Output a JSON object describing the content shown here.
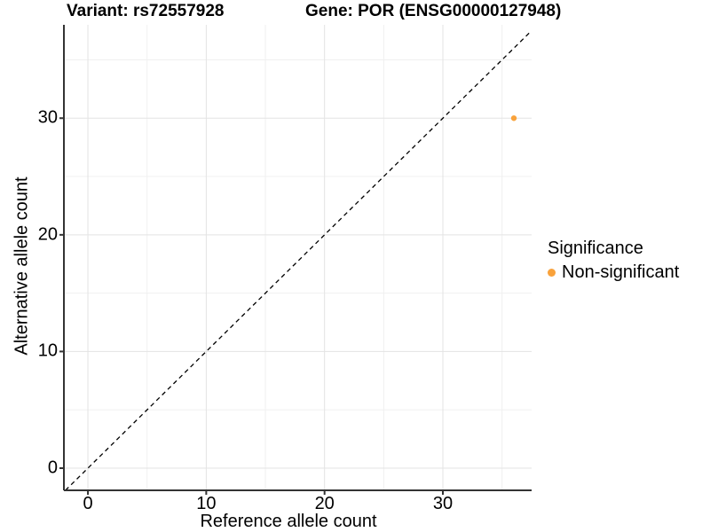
{
  "figure": {
    "title_left": "Variant: rs72557928",
    "title_right": "Gene: POR (ENSG00000127948)"
  },
  "chart_data": {
    "type": "scatter",
    "xlabel": "Reference allele count",
    "ylabel": "Alternative allele count",
    "x_ticks": [
      0,
      10,
      20,
      30
    ],
    "y_ticks": [
      0,
      10,
      20,
      30
    ],
    "x_minor_ticks": [
      5,
      15,
      25,
      35
    ],
    "y_minor_ticks": [
      5,
      15,
      25,
      35
    ],
    "xlim": [
      -2.03,
      37.5
    ],
    "ylim": [
      -1.9,
      38.0
    ],
    "grid": true,
    "identity_line": {
      "slope": 1,
      "intercept": 0,
      "style": "dashed",
      "color": "#000000"
    },
    "series": [
      {
        "name": "Non-significant",
        "color": "#F9A23B",
        "points": [
          {
            "x": 36,
            "y": 30
          }
        ]
      }
    ],
    "legend": {
      "title": "Significance",
      "position": "right",
      "items": [
        {
          "label": "Non-significant",
          "color": "#F9A23B"
        }
      ]
    },
    "colors": {
      "axis_line": "#333333",
      "grid_major": "#E3E3E3",
      "grid_minor": "#F0F0F0",
      "tick_text": "#000000"
    }
  }
}
